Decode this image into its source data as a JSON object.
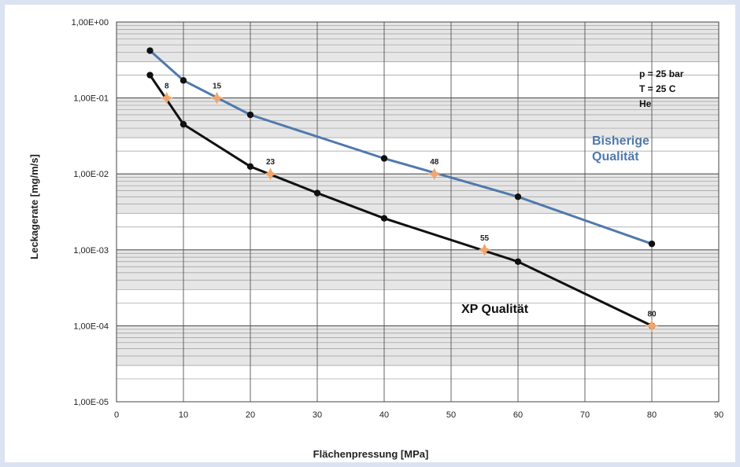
{
  "colors": {
    "page_background": "#dbe3f2",
    "plot_band": "#e6e6e6",
    "grid_minor": "#9a9a9a",
    "grid_major": "#555555",
    "series_blue": "#4f79ad",
    "series_black": "#111111",
    "marker_orange": "#f0a66d"
  },
  "chart_data": {
    "type": "line",
    "title": "",
    "xlabel": "Flächenpressung [MPa]",
    "ylabel": "Leckagerate [mg/m/s]",
    "xlim": [
      0,
      90
    ],
    "ylim": [
      1e-05,
      1
    ],
    "yscale": "log",
    "grid": true,
    "x_ticks": [
      {
        "value": 0,
        "label": "0"
      },
      {
        "value": 10,
        "label": "10"
      },
      {
        "value": 20,
        "label": "20"
      },
      {
        "value": 30,
        "label": "30"
      },
      {
        "value": 40,
        "label": "40"
      },
      {
        "value": 50,
        "label": "50"
      },
      {
        "value": 60,
        "label": "60"
      },
      {
        "value": 70,
        "label": "70"
      },
      {
        "value": 80,
        "label": "80"
      },
      {
        "value": 90,
        "label": "90"
      }
    ],
    "y_ticks": [
      {
        "value": 1,
        "label": "1,00E+00"
      },
      {
        "value": 0.1,
        "label": "1,00E-01"
      },
      {
        "value": 0.01,
        "label": "1,00E-02"
      },
      {
        "value": 0.001,
        "label": "1,00E-03"
      },
      {
        "value": 0.0001,
        "label": "1,00E-04"
      },
      {
        "value": 1e-05,
        "label": "1,00E-05"
      }
    ],
    "annotations": [
      "p = 25 bar",
      "T = 25  C",
      "He"
    ],
    "series": [
      {
        "name": "Bisherige Qualität",
        "label_lines": [
          "Bisherige",
          "Qualität"
        ],
        "color": "#4f79ad",
        "x": [
          5,
          10,
          20,
          40,
          60,
          80
        ],
        "y": [
          0.42,
          0.17,
          0.06,
          0.016,
          0.005,
          0.0012
        ],
        "highlights": [
          {
            "x": 15,
            "y": 0.1,
            "label": "15"
          },
          {
            "x": 47.5,
            "y": 0.01,
            "label": "48"
          }
        ]
      },
      {
        "name": "XP Qualität",
        "label_lines": [
          "XP Qualität"
        ],
        "color": "#111111",
        "x": [
          5,
          10,
          20,
          30,
          40,
          60,
          80
        ],
        "y": [
          0.2,
          0.045,
          0.0125,
          0.0056,
          0.0026,
          0.0007,
          0.0001
        ],
        "highlights": [
          {
            "x": 7.5,
            "y": 0.1,
            "label": "8"
          },
          {
            "x": 23,
            "y": 0.01,
            "label": "23"
          },
          {
            "x": 55,
            "y": 0.001,
            "label": "55"
          },
          {
            "x": 80,
            "y": 0.0001,
            "label": "80"
          }
        ]
      }
    ]
  }
}
